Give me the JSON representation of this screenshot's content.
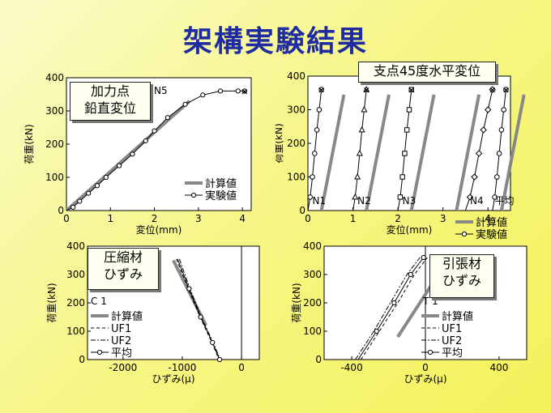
{
  "slide": {
    "title": "架構実験結果"
  },
  "labels": {
    "c1": "加力点\n鉛直変位",
    "c2": "支点45度水平変位",
    "c3": "圧縮材\nひずみ",
    "c4": "引張材\nひずみ"
  },
  "chart_data": [
    {
      "type": "line",
      "title": "",
      "xlabel": "変位(mm)",
      "ylabel": "荷重(kN)",
      "xlim": [
        0,
        4.2
      ],
      "ylim": [
        0,
        400
      ],
      "xticks": [
        "0",
        "1",
        "2",
        "3",
        "4"
      ],
      "yticks": [
        "0",
        "100",
        "200",
        "300",
        "400"
      ],
      "tag": "N5",
      "series": [
        {
          "name": "計算値",
          "x": [
            0,
            2.8
          ],
          "y": [
            0,
            330
          ]
        },
        {
          "name": "実験値",
          "x": [
            0,
            0.15,
            0.3,
            0.5,
            0.7,
            0.9,
            1.2,
            1.5,
            1.8,
            2.0,
            2.3,
            2.7,
            3.1,
            3.5,
            3.9,
            4.05
          ],
          "y": [
            0,
            10,
            28,
            52,
            75,
            100,
            135,
            170,
            210,
            240,
            280,
            320,
            348,
            360,
            360,
            360
          ]
        }
      ],
      "legend": [
        {
          "name": "計算値"
        },
        {
          "name": "実験値"
        }
      ]
    },
    {
      "type": "line",
      "title": "",
      "xlabel": "変位(mm)",
      "ylabel": "荷重(kN)",
      "xlim": [
        0,
        4.5
      ],
      "ylim": [
        0,
        400
      ],
      "xticks": [
        "0",
        "1",
        "2",
        "3",
        "4"
      ],
      "yticks": [
        "0",
        "100",
        "200",
        "300",
        "400"
      ],
      "group_labels": [
        "N1",
        "N2",
        "N3",
        "N4",
        "平均"
      ],
      "calc_lines": [
        {
          "x": [
            0.3,
            0.8
          ],
          "y": [
            0,
            345
          ]
        },
        {
          "x": [
            1.3,
            1.8
          ],
          "y": [
            0,
            345
          ]
        },
        {
          "x": [
            2.3,
            2.8
          ],
          "y": [
            0,
            345
          ]
        },
        {
          "x": [
            3.3,
            3.8
          ],
          "y": [
            0,
            345
          ]
        },
        {
          "x": [
            4.3,
            4.8
          ],
          "y": [
            0,
            345
          ]
        }
      ],
      "series": [
        {
          "name": "N1",
          "x": [
            0,
            0.05,
            0.1,
            0.15,
            0.2,
            0.25,
            0.3
          ],
          "y": [
            0,
            40,
            100,
            170,
            240,
            300,
            360
          ]
        },
        {
          "name": "N2",
          "x": [
            1.0,
            1.05,
            1.1,
            1.15,
            1.2,
            1.25,
            1.3
          ],
          "y": [
            0,
            40,
            100,
            170,
            240,
            300,
            360
          ]
        },
        {
          "name": "N3",
          "x": [
            2.0,
            2.05,
            2.1,
            2.15,
            2.2,
            2.25,
            2.3
          ],
          "y": [
            0,
            40,
            100,
            170,
            240,
            300,
            360
          ]
        },
        {
          "name": "N4",
          "x": [
            3.5,
            3.6,
            3.7,
            3.8,
            3.9,
            4.0,
            4.1
          ],
          "y": [
            0,
            40,
            100,
            170,
            240,
            300,
            360
          ]
        },
        {
          "name": "平均",
          "x": [
            4.1,
            4.15,
            4.2,
            4.25,
            4.3,
            4.35,
            4.4
          ],
          "y": [
            0,
            40,
            100,
            170,
            240,
            300,
            360
          ]
        }
      ],
      "legend": [
        {
          "name": "計算値"
        },
        {
          "name": "実験値"
        }
      ]
    },
    {
      "type": "line",
      "title": "",
      "xlabel": "ひずみ(μ)",
      "ylabel": "荷重(kN)",
      "xlim": [
        -2600,
        300
      ],
      "ylim": [
        0,
        400
      ],
      "xticks": [
        "-2000",
        "-1000",
        "0"
      ],
      "yticks": [
        "0",
        "100",
        "200",
        "300",
        "400"
      ],
      "tag": "C 1",
      "series": [
        {
          "name": "計算値",
          "x": [
            -1150,
            -600
          ],
          "y": [
            350,
            120
          ]
        },
        {
          "name": "UF1",
          "x": [
            -1100,
            -900,
            -700,
            -500,
            -380
          ],
          "y": [
            355,
            250,
            150,
            60,
            0
          ]
        },
        {
          "name": "UF2",
          "x": [
            -1050,
            -870,
            -680,
            -480,
            -360
          ],
          "y": [
            355,
            250,
            150,
            60,
            0
          ]
        },
        {
          "name": "平均",
          "x": [
            -1080,
            -885,
            -690,
            -490,
            -370
          ],
          "y": [
            355,
            250,
            150,
            60,
            0
          ]
        }
      ],
      "legend": [
        {
          "name": "計算値"
        },
        {
          "name": "UF1"
        },
        {
          "name": "UF2"
        },
        {
          "name": "平均"
        }
      ]
    },
    {
      "type": "line",
      "title": "",
      "xlabel": "ひずみ(μ)",
      "ylabel": "荷重(kN)",
      "xlim": [
        -550,
        550
      ],
      "ylim": [
        0,
        400
      ],
      "xticks": [
        "-400",
        "0",
        "400"
      ],
      "yticks": [
        "0",
        "100",
        "200",
        "300",
        "400"
      ],
      "tag": "T 1",
      "series": [
        {
          "name": "計算値",
          "x": [
            -150,
            100
          ],
          "y": [
            80,
            330
          ]
        },
        {
          "name": "UF1",
          "x": [
            -350,
            -250,
            -150,
            -60,
            10
          ],
          "y": [
            0,
            100,
            200,
            300,
            360
          ]
        },
        {
          "name": "UF2",
          "x": [
            -380,
            -280,
            -190,
            -100,
            -30
          ],
          "y": [
            0,
            100,
            200,
            300,
            360
          ]
        },
        {
          "name": "平均",
          "x": [
            -365,
            -265,
            -170,
            -80,
            -10
          ],
          "y": [
            0,
            100,
            200,
            300,
            360
          ]
        }
      ],
      "legend": [
        {
          "name": "計算値"
        },
        {
          "name": "UF1"
        },
        {
          "name": "UF2"
        },
        {
          "name": "平均"
        }
      ]
    }
  ]
}
